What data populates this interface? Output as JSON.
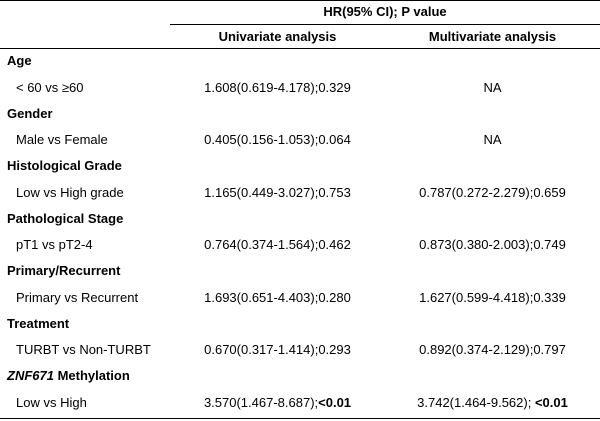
{
  "header": {
    "span_title": "HR(95% CI); P value",
    "col_univariate": "Univariate analysis",
    "col_multivariate": "Multivariate analysis"
  },
  "groups": [
    {
      "title": "Age",
      "row_label": "< 60 vs ≥60",
      "univariate": "1.608(0.619-4.178);0.329",
      "multivariate": "NA"
    },
    {
      "title": "Gender",
      "row_label": "Male vs Female",
      "univariate": "0.405(0.156-1.053);0.064",
      "multivariate": "NA"
    },
    {
      "title": "Histological Grade",
      "row_label": "Low vs High grade",
      "univariate": "1.165(0.449-3.027);0.753",
      "multivariate": "0.787(0.272-2.279);0.659"
    },
    {
      "title": "Pathological Stage",
      "row_label": "pT1 vs pT2-4",
      "univariate": "0.764(0.374-1.564);0.462",
      "multivariate": "0.873(0.380-2.003);0.749"
    },
    {
      "title": "Primary/Recurrent",
      "row_label": "Primary vs Recurrent",
      "univariate": "1.693(0.651-4.403);0.280",
      "multivariate": "1.627(0.599-4.418);0.339"
    },
    {
      "title": "Treatment",
      "row_label": "TURBT vs Non-TURBT",
      "univariate": "0.670(0.317-1.414);0.293",
      "multivariate": "0.892(0.374-2.129);0.797"
    },
    {
      "title_gene": "ZNF671",
      "title_rest": " Methylation",
      "row_label": "Low vs High",
      "univariate_main": "3.570(1.467-8.687);",
      "univariate_p": "<0.01",
      "multivariate_main": "3.742(1.464-9.562); ",
      "multivariate_p": "<0.01"
    }
  ]
}
